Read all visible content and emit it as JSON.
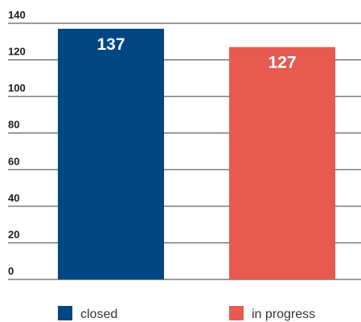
{
  "chart_data": {
    "type": "bar",
    "categories": [
      "closed",
      "in progress"
    ],
    "values": [
      137,
      127
    ],
    "colors": [
      "#004682",
      "#e85a50"
    ],
    "ylim": [
      0,
      140
    ],
    "yticks": [
      0,
      20,
      40,
      60,
      80,
      100,
      120,
      140
    ],
    "grid": true,
    "legend": "bottom"
  }
}
